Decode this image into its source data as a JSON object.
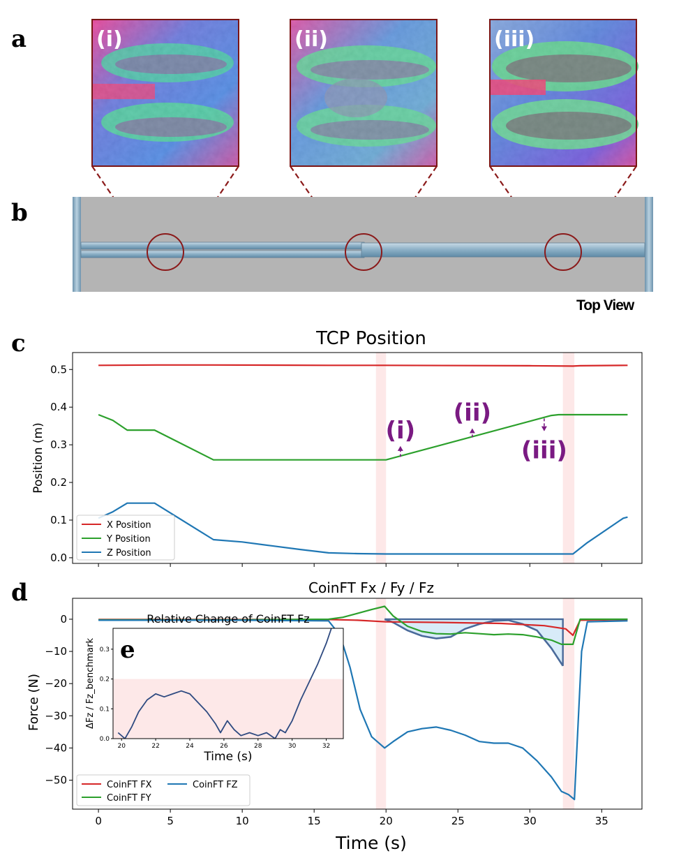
{
  "panels": {
    "a": "a",
    "b": "b",
    "c": "c",
    "d": "d",
    "e": "e"
  },
  "insets_a": [
    {
      "label": "(i)"
    },
    {
      "label": "(ii)"
    },
    {
      "label": "(iii)"
    }
  ],
  "top_view_label": "Top View",
  "colors": {
    "x": "#d62728",
    "y": "#2ca02c",
    "z": "#1f77b4",
    "highlight": "#fde8e8",
    "annotation": "#7a1a82",
    "connector": "#8b1a1a"
  },
  "chart_data": [
    {
      "type": "line",
      "title": "TCP Position",
      "xlabel": "",
      "ylabel": "Position (m)",
      "xlim": [
        -1.8,
        37.8
      ],
      "ylim": [
        -0.015,
        0.545
      ],
      "yticks": [
        "0.0",
        "0.1",
        "0.2",
        "0.3",
        "0.4",
        "0.5"
      ],
      "ytick_values": [
        0.0,
        0.1,
        0.2,
        0.3,
        0.4,
        0.5
      ],
      "xtick_values": [
        0,
        5,
        10,
        15,
        20,
        25,
        30,
        35
      ],
      "highlight_bands": [
        [
          19.3,
          20.0
        ],
        [
          32.3,
          33.1
        ]
      ],
      "legend_position": "lower-left",
      "series": [
        {
          "name": "X Position",
          "x": [
            0,
            4,
            8,
            16,
            20,
            30,
            33,
            33.5,
            36.8
          ],
          "y": [
            0.511,
            0.512,
            0.512,
            0.511,
            0.511,
            0.51,
            0.509,
            0.51,
            0.511
          ]
        },
        {
          "name": "Y Position",
          "x": [
            0,
            1,
            2,
            3.9,
            8,
            12,
            16,
            20,
            31.5,
            32,
            33,
            36.8
          ],
          "y": [
            0.38,
            0.365,
            0.339,
            0.339,
            0.26,
            0.26,
            0.26,
            0.26,
            0.378,
            0.38,
            0.38,
            0.38
          ]
        },
        {
          "name": "Z Position",
          "x": [
            0,
            1,
            2,
            3.9,
            8,
            10,
            12,
            14,
            16,
            18,
            20,
            25,
            30,
            33,
            34,
            36.5,
            36.8
          ],
          "y": [
            0.105,
            0.122,
            0.145,
            0.145,
            0.048,
            0.042,
            0.032,
            0.022,
            0.013,
            0.011,
            0.01,
            0.01,
            0.01,
            0.01,
            0.04,
            0.105,
            0.108
          ]
        }
      ],
      "annotations": [
        {
          "label": "(i)",
          "x": 21,
          "y_from": 0.268,
          "y_to": 0.295,
          "direction": "up"
        },
        {
          "label": "(ii)",
          "x": 26,
          "y_from": 0.32,
          "y_to": 0.342,
          "direction": "up"
        },
        {
          "label": "(iii)",
          "x": 31,
          "y_from": 0.37,
          "y_to": 0.338,
          "direction": "down"
        }
      ]
    },
    {
      "type": "line",
      "title": "CoinFT Fx / Fy / Fz",
      "xlabel": "Time (s)",
      "ylabel": "Force (N)",
      "xlim": [
        -1.8,
        37.8
      ],
      "ylim": [
        -59,
        6.5
      ],
      "yticks": [
        "0",
        "−10",
        "−20",
        "−30",
        "−40",
        "−50"
      ],
      "ytick_values": [
        0,
        -10,
        -20,
        -30,
        -40,
        -50
      ],
      "xticks": [
        "0",
        "5",
        "10",
        "15",
        "20",
        "25",
        "30",
        "35"
      ],
      "xtick_values": [
        0,
        5,
        10,
        15,
        20,
        25,
        30,
        35
      ],
      "highlight_bands": [
        [
          19.3,
          20.0
        ],
        [
          32.3,
          33.1
        ]
      ],
      "legend_position": "lower-left",
      "series": [
        {
          "name": "CoinFT FX",
          "x": [
            0,
            10,
            16,
            18,
            20,
            24,
            28,
            31,
            32.5,
            33,
            33.5,
            36.8
          ],
          "y": [
            -0.1,
            -0.1,
            -0.1,
            -0.3,
            -0.8,
            -1.0,
            -1.3,
            -2.0,
            -3.0,
            -5.0,
            -0.3,
            -0.1
          ]
        },
        {
          "name": "CoinFT FY",
          "x": [
            0,
            10,
            16,
            17,
            18,
            19,
            19.9,
            20.5,
            21.5,
            22.5,
            23.5,
            24.5,
            25.5,
            26.5,
            27.5,
            28.5,
            29.5,
            30.5,
            31.5,
            32.2,
            33,
            33.5,
            36.8
          ],
          "y": [
            -0.2,
            -0.2,
            0.0,
            0.6,
            1.8,
            3.0,
            4.0,
            1.0,
            -2.2,
            -3.8,
            -4.5,
            -4.6,
            -4.2,
            -4.5,
            -4.8,
            -4.6,
            -4.8,
            -5.5,
            -6.5,
            -7.8,
            -7.8,
            0.0,
            0.0
          ]
        },
        {
          "name": "CoinFT FZ",
          "x": [
            0,
            10,
            16,
            16.8,
            17.5,
            18.2,
            19,
            19.9,
            20.5,
            21.5,
            22.5,
            23.5,
            24.5,
            25.5,
            26.5,
            27.5,
            28.5,
            29.5,
            30.5,
            31.5,
            32.2,
            32.7,
            33.1,
            33.6,
            34,
            36.8
          ],
          "y": [
            -0.3,
            -0.3,
            -0.5,
            -5.0,
            -15.0,
            -28.0,
            -36.5,
            -40.0,
            -38.0,
            -35.0,
            -34.0,
            -33.5,
            -34.5,
            -36.0,
            -38.0,
            -38.5,
            -38.5,
            -40.0,
            -44.0,
            -49.0,
            -53.5,
            -54.5,
            -56.0,
            -10.0,
            -0.8,
            -0.5
          ]
        }
      ],
      "fill_region": {
        "x_start": 19.9,
        "x_end": 32.3,
        "top": 0,
        "bottom_curve": [
          [
            19.9,
            0.0
          ],
          [
            20.5,
            -1.0
          ],
          [
            21.5,
            -3.5
          ],
          [
            22.5,
            -5.2
          ],
          [
            23.5,
            -6.0
          ],
          [
            24.5,
            -5.5
          ],
          [
            25.5,
            -3.0
          ],
          [
            26.5,
            -1.5
          ],
          [
            27.5,
            -0.5
          ],
          [
            28.5,
            -0.3
          ],
          [
            29.5,
            -1.5
          ],
          [
            30.5,
            -3.5
          ],
          [
            31.5,
            -9.0
          ],
          [
            32.3,
            -14.5
          ]
        ]
      }
    },
    {
      "type": "line",
      "title": "Relative Change of CoinFT Fz",
      "xlabel": "Time (s)",
      "ylabel": "ΔFz / Fz_benchmark",
      "xlim": [
        19.5,
        33
      ],
      "ylim": [
        0,
        0.37
      ],
      "yticks": [
        "0.0",
        "0.1",
        "0.2",
        "0.3"
      ],
      "ytick_values": [
        0.0,
        0.1,
        0.2,
        0.3
      ],
      "xticks": [
        "20",
        "22",
        "24",
        "26",
        "28",
        "30",
        "32"
      ],
      "xtick_values": [
        20,
        22,
        24,
        26,
        28,
        30,
        32
      ],
      "threshold_band": [
        0,
        0.2
      ],
      "series": [
        {
          "name": "",
          "x": [
            19.8,
            20.2,
            20.6,
            21.0,
            21.5,
            22.0,
            22.5,
            23.0,
            23.5,
            24.0,
            24.5,
            25.0,
            25.5,
            25.8,
            26.2,
            26.6,
            27.0,
            27.5,
            28.0,
            28.5,
            29.0,
            29.3,
            29.6,
            30.0,
            30.5,
            31.0,
            31.5,
            32.0,
            32.3
          ],
          "y": [
            0.02,
            0.0,
            0.04,
            0.09,
            0.13,
            0.15,
            0.14,
            0.15,
            0.16,
            0.15,
            0.12,
            0.09,
            0.05,
            0.02,
            0.06,
            0.03,
            0.01,
            0.02,
            0.01,
            0.02,
            0.0,
            0.03,
            0.02,
            0.06,
            0.13,
            0.19,
            0.25,
            0.32,
            0.37
          ]
        }
      ]
    }
  ]
}
